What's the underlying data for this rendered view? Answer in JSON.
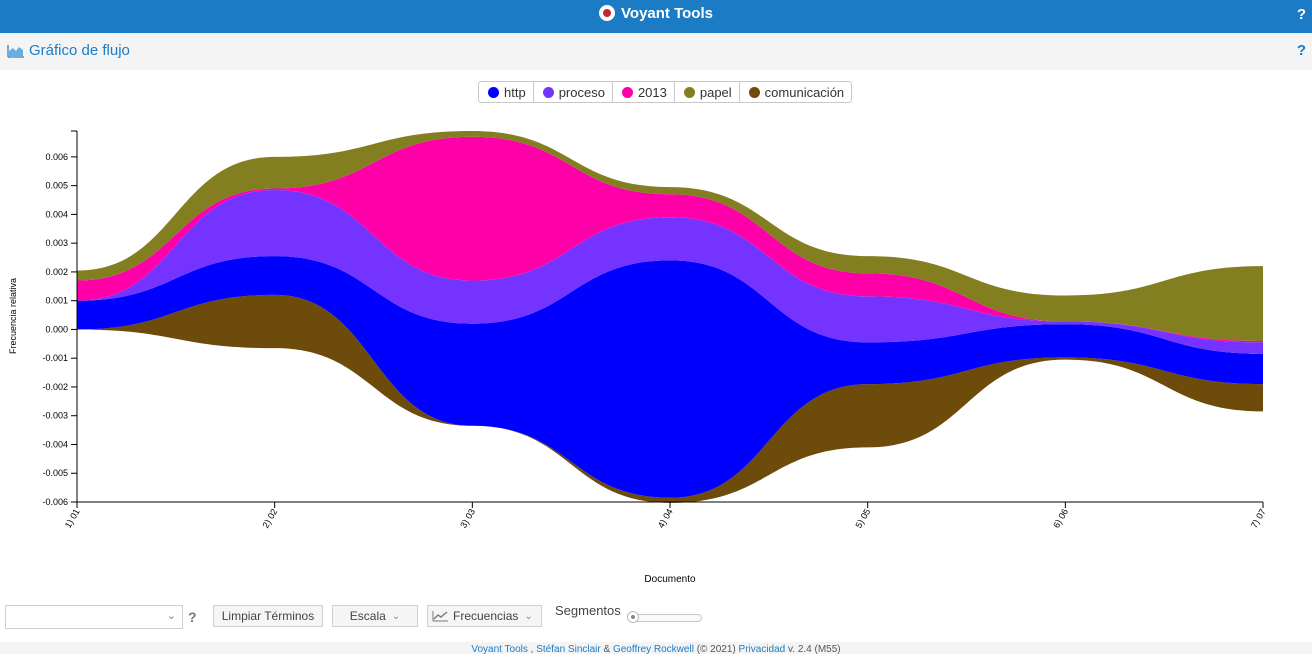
{
  "app": {
    "title": "Voyant Tools",
    "help": "?"
  },
  "panel": {
    "title": "Gráfico de flujo",
    "help": "?"
  },
  "legend": [
    {
      "label": "http",
      "color": "#0000ff"
    },
    {
      "label": "proceso",
      "color": "#7433ff"
    },
    {
      "label": "2013",
      "color": "#ff00a8"
    },
    {
      "label": "papel",
      "color": "#837f20"
    },
    {
      "label": "comunicación",
      "color": "#6c4b0b"
    }
  ],
  "chart_data": {
    "type": "area",
    "subtype": "streamgraph",
    "xlabel": "Documento",
    "ylabel": "Frecuencia relativa",
    "ylim": [
      -0.006,
      0.0069
    ],
    "yticks": [
      "0.006",
      "0.005",
      "0.004",
      "0.003",
      "0.002",
      "0.001",
      "0.000",
      "-0.001",
      "-0.002",
      "-0.003",
      "-0.004",
      "-0.005",
      "-0.006"
    ],
    "categories": [
      "1) 01",
      "2) 02",
      "3) 03",
      "4) 04",
      "5) 05",
      "6) 06",
      "7) 07"
    ],
    "baseline": [
      0.0,
      -0.00065,
      -0.00335,
      -0.00603,
      -0.0041,
      -0.00105,
      -0.00285
    ],
    "series": [
      {
        "name": "comunicación",
        "color": "#6c4b0b",
        "values": [
          0.0,
          0.00185,
          0.0,
          0.00018,
          0.0022,
          8e-05,
          0.00095
        ]
      },
      {
        "name": "http",
        "color": "#0000ff",
        "values": [
          0.001,
          0.00135,
          0.00355,
          0.00825,
          0.00145,
          0.00115,
          0.00105
        ]
      },
      {
        "name": "proceso",
        "color": "#7433ff",
        "values": [
          0.0,
          0.0023,
          0.0015,
          0.0015,
          0.0016,
          0.0001,
          0.0004
        ]
      },
      {
        "name": "2013",
        "color": "#ff00a8",
        "values": [
          0.0007,
          5e-05,
          0.005,
          0.0008,
          0.0008,
          0.0,
          5e-05
        ]
      },
      {
        "name": "papel",
        "color": "#837f20",
        "values": [
          0.00035,
          0.0011,
          0.0002,
          0.00025,
          0.0006,
          0.0009,
          0.0026
        ]
      }
    ]
  },
  "toolbar": {
    "clear_label": "Limpiar Términos",
    "scale_label": "Escala",
    "freq_label": "Frecuencias",
    "segments_label": "Segmentos",
    "help": "?"
  },
  "footer": {
    "app": "Voyant Tools",
    "sep1": " , ",
    "author1": "Stéfan Sinclair",
    "amp": " & ",
    "author2": "Geoffrey Rockwell",
    "year": " (© 2021) ",
    "privacy": "Privacidad",
    "version": " v. 2.4 (M55)"
  }
}
